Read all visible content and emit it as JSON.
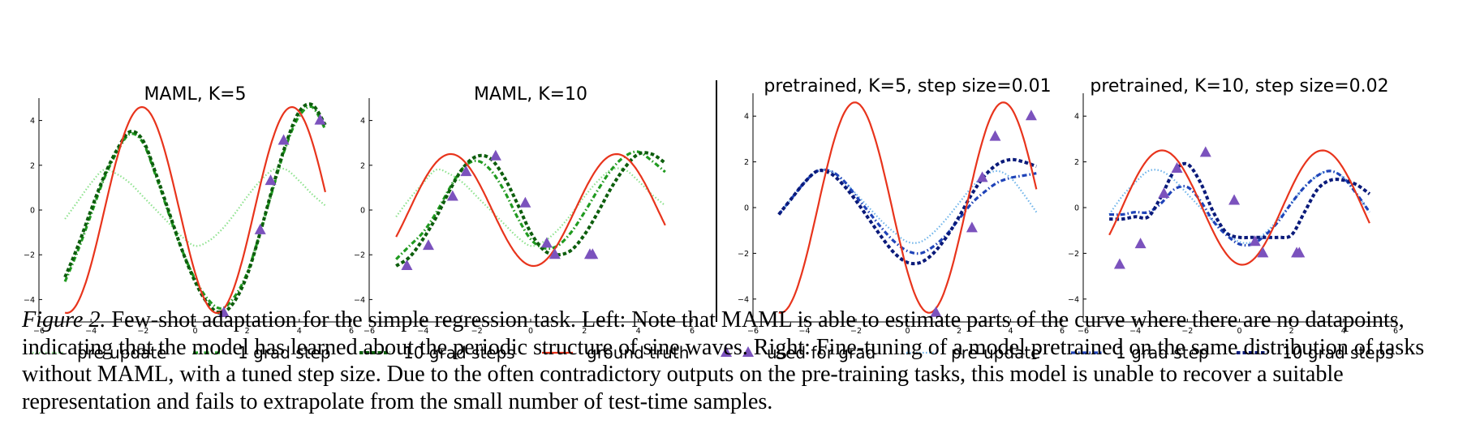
{
  "colors": {
    "truth": "#e8341c",
    "maml_pre": "#8ee28e",
    "maml_1": "#1f9a1f",
    "maml_10": "#0d5e0d",
    "pt_pre": "#6fb4ea",
    "pt_1": "#1f43b8",
    "pt_10": "#0a1a7a",
    "marker": "#7b52bd"
  },
  "legend": {
    "items": [
      {
        "label": "pre-update",
        "kind": "maml_pre"
      },
      {
        "label": "1 grad step",
        "kind": "maml_1"
      },
      {
        "label": "10 grad steps",
        "kind": "maml_10"
      },
      {
        "label": "ground truth",
        "kind": "truth"
      },
      {
        "label": "used for grad",
        "kind": "marker"
      },
      {
        "label": "pre-update",
        "kind": "pt_pre"
      },
      {
        "label": "1 grad step",
        "kind": "pt_1"
      },
      {
        "label": "10 grad steps",
        "kind": "pt_10"
      }
    ]
  },
  "caption": {
    "figure_label": "Figure 2.",
    "text": "Few-shot adaptation for the simple regression task. Left: Note that MAML is able to estimate parts of the curve where there are no datapoints, indicating that the model has learned about the periodic structure of sine waves. Right: Fine-tuning of a model pretrained on the same distribution of tasks without MAML, with a tuned step size. Due to the often contradictory outputs on the pre-training tasks, this model is unable to recover a suitable representation and fails to extrapolate from the small number of test-time samples."
  },
  "chart_data": [
    {
      "type": "line",
      "title": "MAML, K=5",
      "xlim": [
        -6,
        6
      ],
      "ylim": [
        -5,
        5
      ],
      "xticks": [
        -6,
        -4,
        -2,
        0,
        2,
        4,
        6
      ],
      "yticks": [
        -4,
        -2,
        0,
        2,
        4
      ],
      "xtick_labels": [
        "−6",
        "−4",
        "−2",
        "0",
        "2",
        "4",
        "6"
      ],
      "ytick_labels": [
        "−4",
        "−2",
        "0",
        "2",
        "4"
      ],
      "points": {
        "x": [
          1.1,
          2.5,
          2.9,
          3.4,
          4.8
        ],
        "y": [
          -4.6,
          -0.9,
          1.3,
          3.1,
          4.0
        ]
      },
      "series": [
        {
          "name": "pre-update",
          "style": "maml_pre",
          "x": [
            -5,
            -4.5,
            -4,
            -3.5,
            -3,
            -2.5,
            -2,
            -1.5,
            -1,
            -0.5,
            0,
            0.5,
            1,
            1.5,
            2,
            2.5,
            3,
            3.5,
            4,
            4.5,
            5
          ],
          "y": [
            -0.4,
            0.4,
            1.2,
            1.8,
            1.6,
            1.2,
            0.6,
            0.0,
            -0.6,
            -1.2,
            -1.6,
            -1.4,
            -0.9,
            -0.2,
            0.6,
            1.3,
            1.8,
            1.8,
            1.3,
            0.7,
            0.2
          ]
        },
        {
          "name": "1 grad step",
          "style": "maml_1",
          "x": [
            -5,
            -4.5,
            -4,
            -3.5,
            -3,
            -2.5,
            -2,
            -1.5,
            -1,
            -0.5,
            0,
            0.5,
            1,
            1.5,
            2,
            2.5,
            3,
            3.5,
            4,
            4.5,
            5
          ],
          "y": [
            -3.2,
            -1.8,
            -0.2,
            1.4,
            2.6,
            3.4,
            3.0,
            1.5,
            -0.2,
            -1.8,
            -3.1,
            -4.0,
            -4.4,
            -3.9,
            -2.8,
            -1.0,
            1.0,
            2.9,
            4.2,
            4.6,
            3.6
          ]
        },
        {
          "name": "10 grad steps",
          "style": "maml_10",
          "x": [
            -5,
            -4.5,
            -4,
            -3.5,
            -3,
            -2.5,
            -2,
            -1.5,
            -1,
            -0.5,
            0,
            0.5,
            1,
            1.5,
            2,
            2.5,
            3,
            3.5,
            4,
            4.5,
            5
          ],
          "y": [
            -3.0,
            -1.6,
            0.0,
            1.5,
            2.7,
            3.5,
            3.1,
            1.6,
            -0.1,
            -1.8,
            -3.2,
            -4.2,
            -4.6,
            -4.1,
            -2.9,
            -1.0,
            1.1,
            3.0,
            4.4,
            4.7,
            3.8
          ]
        },
        {
          "name": "ground truth",
          "style": "truth",
          "fn": {
            "amp": 4.6,
            "freq": 1.09,
            "phase": 3.8
          },
          "x_range": [
            -5,
            5
          ]
        }
      ]
    },
    {
      "type": "line",
      "title": "MAML, K=10",
      "xlim": [
        -6,
        6
      ],
      "ylim": [
        -5,
        5
      ],
      "xticks": [
        -6,
        -4,
        -2,
        0,
        2,
        4,
        6
      ],
      "yticks": [
        -4,
        -2,
        0,
        2,
        4
      ],
      "xtick_labels": [
        "−6",
        "−4",
        "−2",
        "0",
        "2",
        "4",
        "6"
      ],
      "ytick_labels": [
        "−4",
        "−2",
        "0",
        "2",
        "4"
      ],
      "points": {
        "x": [
          -4.6,
          -3.8,
          -2.9,
          -2.4,
          -1.3,
          -0.2,
          0.6,
          0.9,
          2.2,
          2.3
        ],
        "y": [
          -2.5,
          -1.6,
          0.6,
          1.7,
          2.4,
          0.3,
          -1.5,
          -2.0,
          -2.0,
          -2.0
        ]
      },
      "series": [
        {
          "name": "pre-update",
          "style": "maml_pre",
          "x": [
            -5,
            -4.5,
            -4,
            -3.5,
            -3,
            -2.5,
            -2,
            -1.5,
            -1,
            -0.5,
            0,
            0.5,
            1,
            1.5,
            2,
            2.5,
            3,
            3.5,
            4,
            4.5,
            5
          ],
          "y": [
            -0.3,
            0.5,
            1.2,
            1.8,
            1.6,
            1.2,
            0.6,
            0.0,
            -0.6,
            -1.2,
            -1.6,
            -1.4,
            -0.9,
            -0.2,
            0.6,
            1.3,
            1.8,
            1.8,
            1.3,
            0.7,
            0.2
          ]
        },
        {
          "name": "1 grad step",
          "style": "maml_1",
          "x": [
            -5,
            -4.5,
            -4,
            -3.5,
            -3,
            -2.5,
            -2,
            -1.5,
            -1,
            -0.5,
            0,
            0.5,
            1,
            1.5,
            2,
            2.5,
            3,
            3.5,
            4,
            4.5,
            5
          ],
          "y": [
            -2.2,
            -1.6,
            -1.0,
            -0.1,
            1.0,
            1.9,
            2.2,
            1.8,
            0.9,
            -0.3,
            -1.3,
            -1.7,
            -1.6,
            -1.0,
            -0.1,
            0.9,
            1.8,
            2.4,
            2.6,
            2.2,
            1.7
          ]
        },
        {
          "name": "10 grad steps",
          "style": "maml_10",
          "x": [
            -5,
            -4.5,
            -4,
            -3.5,
            -3,
            -2.5,
            -2,
            -1.5,
            -1,
            -0.5,
            0,
            0.5,
            1,
            1.5,
            2,
            2.5,
            3,
            3.5,
            4,
            4.5,
            5
          ],
          "y": [
            -2.5,
            -2.1,
            -1.3,
            -0.3,
            0.9,
            1.9,
            2.4,
            2.3,
            1.5,
            0.3,
            -1.0,
            -1.8,
            -2.0,
            -1.8,
            -1.1,
            -0.1,
            1.0,
            1.9,
            2.5,
            2.5,
            2.1
          ]
        },
        {
          "name": "ground truth",
          "style": "truth",
          "fn": {
            "amp": 2.5,
            "freq": 1.02,
            "phase": 4.6
          },
          "x_range": [
            -5,
            5
          ]
        }
      ]
    },
    {
      "type": "line",
      "title": "pretrained, K=5, step size=0.01",
      "xlim": [
        -6,
        6
      ],
      "ylim": [
        -5,
        5
      ],
      "xticks": [
        -6,
        -4,
        -2,
        0,
        2,
        4,
        6
      ],
      "yticks": [
        -4,
        -2,
        0,
        2,
        4
      ],
      "xtick_labels": [
        "−6",
        "−4",
        "−2",
        "0",
        "2",
        "4",
        "6"
      ],
      "ytick_labels": [
        "−4",
        "−2",
        "0",
        "2",
        "4"
      ],
      "points": {
        "x": [
          1.1,
          2.5,
          2.9,
          3.4,
          4.8
        ],
        "y": [
          -4.6,
          -0.9,
          1.3,
          3.1,
          4.0
        ]
      },
      "series": [
        {
          "name": "pre-update",
          "style": "pt_pre",
          "x": [
            -5,
            -4.5,
            -4,
            -3.5,
            -3,
            -2.5,
            -2,
            -1.5,
            -1,
            -0.5,
            0,
            0.5,
            1,
            1.5,
            2,
            2.5,
            3,
            3.5,
            4,
            4.5,
            5
          ],
          "y": [
            -0.3,
            0.4,
            1.1,
            1.6,
            1.6,
            1.2,
            0.6,
            0.0,
            -0.6,
            -1.1,
            -1.5,
            -1.5,
            -1.1,
            -0.5,
            0.2,
            0.9,
            1.4,
            1.6,
            1.3,
            0.6,
            -0.2
          ]
        },
        {
          "name": "1 grad step",
          "style": "pt_1",
          "x": [
            -5,
            -4.5,
            -4,
            -3.5,
            -3,
            -2.5,
            -2,
            -1.5,
            -1,
            -0.5,
            0,
            0.5,
            1,
            1.5,
            2,
            2.5,
            3,
            3.5,
            4,
            4.5,
            5
          ],
          "y": [
            -0.3,
            0.4,
            1.1,
            1.6,
            1.6,
            1.2,
            0.5,
            -0.2,
            -0.9,
            -1.5,
            -1.9,
            -2.0,
            -1.7,
            -1.2,
            -0.5,
            0.2,
            0.7,
            1.1,
            1.3,
            1.4,
            1.5
          ]
        },
        {
          "name": "10 grad steps",
          "style": "pt_10",
          "x": [
            -5,
            -4.5,
            -4,
            -3.5,
            -3,
            -2.5,
            -2,
            -1.5,
            -1,
            -0.5,
            0,
            0.5,
            1,
            1.5,
            2,
            2.5,
            3,
            3.5,
            4,
            4.5,
            5
          ],
          "y": [
            -0.3,
            0.4,
            1.1,
            1.6,
            1.5,
            1.0,
            0.3,
            -0.5,
            -1.3,
            -2.0,
            -2.4,
            -2.4,
            -2.0,
            -1.3,
            -0.4,
            0.6,
            1.4,
            1.9,
            2.1,
            2.0,
            1.8
          ]
        },
        {
          "name": "ground truth",
          "style": "truth",
          "fn": {
            "amp": 4.6,
            "freq": 1.09,
            "phase": 3.8
          },
          "x_range": [
            -5,
            5
          ]
        }
      ]
    },
    {
      "type": "line",
      "title": "pretrained, K=10, step size=0.02",
      "xlim": [
        -6,
        6
      ],
      "ylim": [
        -5,
        5
      ],
      "xticks": [
        -6,
        -4,
        -2,
        0,
        2,
        4,
        6
      ],
      "yticks": [
        -4,
        -2,
        0,
        2,
        4
      ],
      "xtick_labels": [
        "−6",
        "−4",
        "−2",
        "0",
        "2",
        "4",
        "6"
      ],
      "ytick_labels": [
        "−4",
        "−2",
        "0",
        "2",
        "4"
      ],
      "points": {
        "x": [
          -4.6,
          -3.8,
          -2.9,
          -2.4,
          -1.3,
          -0.2,
          0.6,
          0.9,
          2.2,
          2.3
        ],
        "y": [
          -2.5,
          -1.6,
          0.6,
          1.7,
          2.4,
          0.3,
          -1.5,
          -2.0,
          -2.0,
          -2.0
        ]
      },
      "series": [
        {
          "name": "pre-update",
          "style": "pt_pre",
          "x": [
            -5,
            -4.5,
            -4,
            -3.5,
            -3,
            -2.5,
            -2,
            -1.5,
            -1,
            -0.5,
            0,
            0.5,
            1,
            1.5,
            2,
            2.5,
            3,
            3.5,
            4,
            4.5,
            5
          ],
          "y": [
            -0.3,
            0.5,
            1.1,
            1.6,
            1.6,
            1.2,
            0.6,
            0.0,
            -0.6,
            -1.1,
            -1.5,
            -1.5,
            -1.1,
            -0.5,
            0.2,
            0.9,
            1.4,
            1.6,
            1.3,
            0.6,
            -0.2
          ]
        },
        {
          "name": "1 grad step",
          "style": "pt_1",
          "x": [
            -5,
            -4.5,
            -4,
            -3.5,
            -3,
            -2.5,
            -2,
            -1.5,
            -1,
            -0.5,
            0,
            0.5,
            1,
            1.5,
            2,
            2.5,
            3,
            3.5,
            4,
            4.5,
            5
          ],
          "y": [
            -0.3,
            -0.3,
            -0.2,
            -0.2,
            0.2,
            0.8,
            0.9,
            0.3,
            -0.6,
            -1.2,
            -1.6,
            -1.6,
            -1.2,
            -0.6,
            0.2,
            0.9,
            1.4,
            1.6,
            1.3,
            0.6,
            -0.2
          ]
        },
        {
          "name": "10 grad steps",
          "style": "pt_10",
          "x": [
            -5,
            -4.5,
            -4,
            -3.5,
            -3,
            -2.5,
            -2,
            -1.5,
            -1,
            -0.5,
            0,
            0.5,
            1,
            1.5,
            2,
            2.5,
            3,
            3.5,
            4,
            4.5,
            5
          ],
          "y": [
            -0.5,
            -0.5,
            -0.4,
            -0.4,
            0.5,
            1.6,
            1.9,
            1.1,
            -0.2,
            -1.1,
            -1.3,
            -1.3,
            -1.3,
            -1.3,
            -1.2,
            -0.2,
            0.8,
            1.2,
            1.2,
            1.0,
            0.6
          ]
        },
        {
          "name": "ground truth",
          "style": "truth",
          "fn": {
            "amp": 2.5,
            "freq": 1.02,
            "phase": 4.6
          },
          "x_range": [
            -5,
            5
          ]
        }
      ]
    }
  ]
}
